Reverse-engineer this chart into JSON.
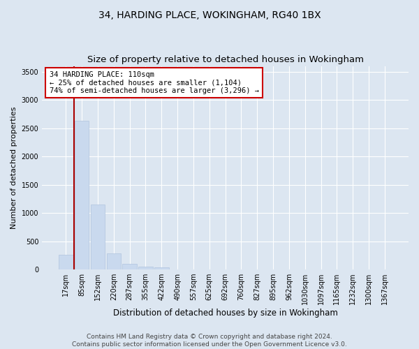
{
  "title": "34, HARDING PLACE, WOKINGHAM, RG40 1BX",
  "subtitle": "Size of property relative to detached houses in Wokingham",
  "xlabel": "Distribution of detached houses by size in Wokingham",
  "ylabel": "Number of detached properties",
  "bar_labels": [
    "17sqm",
    "85sqm",
    "152sqm",
    "220sqm",
    "287sqm",
    "355sqm",
    "422sqm",
    "490sqm",
    "557sqm",
    "625sqm",
    "692sqm",
    "760sqm",
    "827sqm",
    "895sqm",
    "962sqm",
    "1030sqm",
    "1097sqm",
    "1165sqm",
    "1232sqm",
    "1300sqm",
    "1367sqm"
  ],
  "bar_values": [
    265,
    2630,
    1150,
    280,
    100,
    55,
    35,
    0,
    0,
    0,
    0,
    0,
    0,
    0,
    0,
    0,
    0,
    0,
    0,
    0,
    0
  ],
  "bar_color": "#c9d9ee",
  "bar_edge_color": "#b0c4de",
  "vline_color": "#aa0000",
  "annotation_text": "34 HARDING PLACE: 110sqm\n← 25% of detached houses are smaller (1,104)\n74% of semi-detached houses are larger (3,296) →",
  "annotation_box_color": "#ffffff",
  "annotation_box_edge_color": "#cc0000",
  "ylim": [
    0,
    3600
  ],
  "yticks": [
    0,
    500,
    1000,
    1500,
    2000,
    2500,
    3000,
    3500
  ],
  "background_color": "#dce6f1",
  "plot_bg_color": "#dce6f1",
  "grid_color": "#ffffff",
  "footer_line1": "Contains HM Land Registry data © Crown copyright and database right 2024.",
  "footer_line2": "Contains public sector information licensed under the Open Government Licence v3.0.",
  "title_fontsize": 10,
  "subtitle_fontsize": 9.5,
  "xlabel_fontsize": 8.5,
  "ylabel_fontsize": 8,
  "tick_fontsize": 7,
  "annotation_fontsize": 7.5,
  "footer_fontsize": 6.5
}
